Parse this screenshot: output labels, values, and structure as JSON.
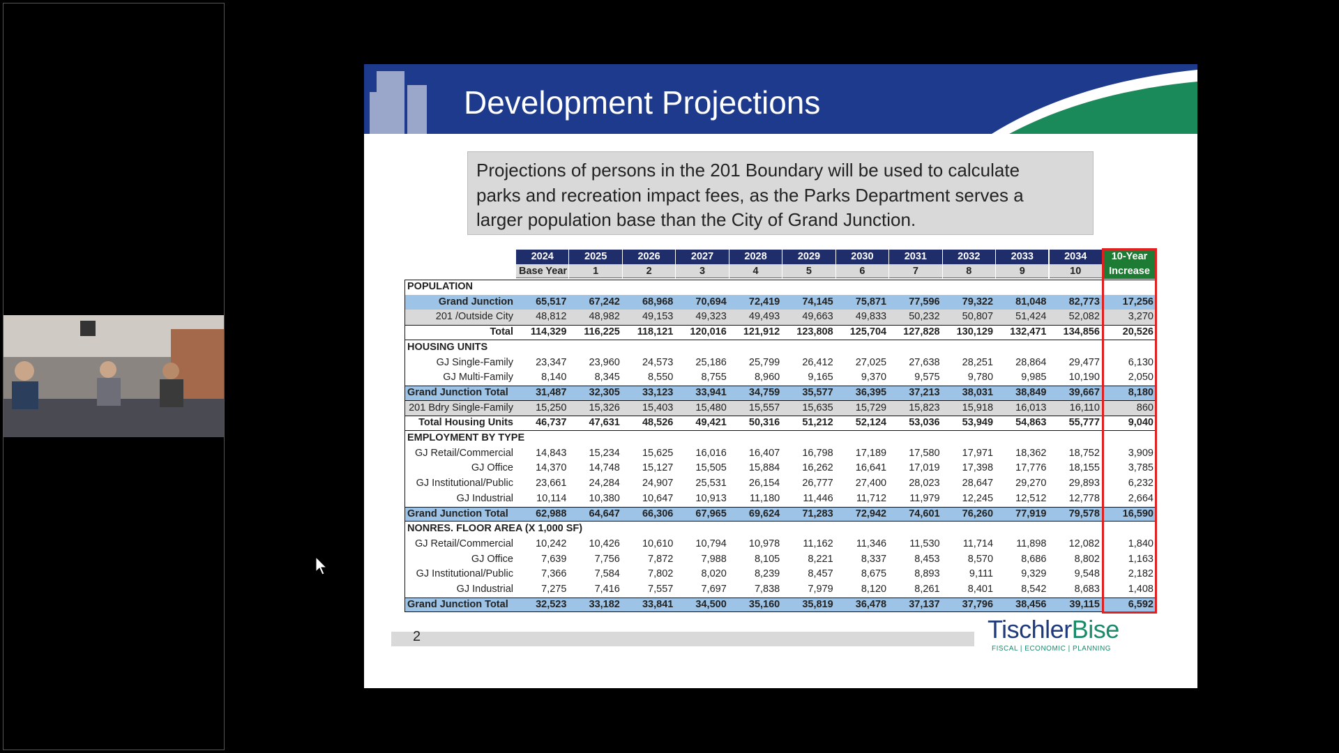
{
  "slide": {
    "title": "Development Projections",
    "intro_lines": [
      "Projections of persons in the 201 Boundary will be used to calculate",
      "parks and recreation impact fees, as the Parks Department serves a",
      "larger population base than the City of Grand Junction."
    ],
    "page_number": "2",
    "logo": {
      "part1": "Tischler",
      "part2": "Bise",
      "tagline": "FISCAL | ECONOMIC | PLANNING"
    }
  },
  "table": {
    "years": [
      "2024",
      "2025",
      "2026",
      "2027",
      "2028",
      "2029",
      "2030",
      "2031",
      "2032",
      "2033",
      "2034"
    ],
    "subheaders": [
      "Base Year",
      "1",
      "2",
      "3",
      "4",
      "5",
      "6",
      "7",
      "8",
      "9",
      "10"
    ],
    "increase_header": [
      "10-Year",
      "Increase"
    ],
    "rows": [
      {
        "label": "POPULATION"
      },
      {
        "label": "Grand Junction",
        "fill": "#9dc3e6",
        "bold": true,
        "values": [
          "65,517",
          "67,242",
          "68,968",
          "70,694",
          "72,419",
          "74,145",
          "75,871",
          "77,596",
          "79,322",
          "81,048",
          "82,773"
        ],
        "increase": "17,256"
      },
      {
        "label": "201 /Outside City",
        "fill": "#d9d9d9",
        "values": [
          "48,812",
          "48,982",
          "49,153",
          "49,323",
          "49,493",
          "49,663",
          "49,833",
          "50,232",
          "50,807",
          "51,424",
          "52,082"
        ],
        "increase": "3,270"
      },
      {
        "label": "Total",
        "bold": true,
        "rule": true,
        "values": [
          "114,329",
          "116,225",
          "118,121",
          "120,016",
          "121,912",
          "123,808",
          "125,704",
          "127,828",
          "130,129",
          "132,471",
          "134,856"
        ],
        "increase": "20,526"
      },
      {
        "label": "HOUSING UNITS"
      },
      {
        "label": "GJ Single-Family",
        "values": [
          "23,347",
          "23,960",
          "24,573",
          "25,186",
          "25,799",
          "26,412",
          "27,025",
          "27,638",
          "28,251",
          "28,864",
          "29,477"
        ],
        "increase": "6,130"
      },
      {
        "label": "GJ Multi-Family",
        "values": [
          "8,140",
          "8,345",
          "8,550",
          "8,755",
          "8,960",
          "9,165",
          "9,370",
          "9,575",
          "9,780",
          "9,985",
          "10,190"
        ],
        "increase": "2,050"
      },
      {
        "label": "Grand Junction Total",
        "fill": "#9dc3e6",
        "bold": true,
        "rule": true,
        "align": "left",
        "values": [
          "31,487",
          "32,305",
          "33,123",
          "33,941",
          "34,759",
          "35,577",
          "36,395",
          "37,213",
          "38,031",
          "38,849",
          "39,667"
        ],
        "increase": "8,180"
      },
      {
        "label": "201 Bdry Single-Family",
        "fill": "#d9d9d9",
        "values": [
          "15,250",
          "15,326",
          "15,403",
          "15,480",
          "15,557",
          "15,635",
          "15,729",
          "15,823",
          "15,918",
          "16,013",
          "16,110"
        ],
        "increase": "860"
      },
      {
        "label": "Total Housing Units",
        "bold": true,
        "rule": true,
        "values": [
          "46,737",
          "47,631",
          "48,526",
          "49,421",
          "50,316",
          "51,212",
          "52,124",
          "53,036",
          "53,949",
          "54,863",
          "55,777"
        ],
        "increase": "9,040"
      },
      {
        "label": "EMPLOYMENT BY TYPE"
      },
      {
        "label": "GJ Retail/Commercial",
        "values": [
          "14,843",
          "15,234",
          "15,625",
          "16,016",
          "16,407",
          "16,798",
          "17,189",
          "17,580",
          "17,971",
          "18,362",
          "18,752"
        ],
        "increase": "3,909"
      },
      {
        "label": "GJ Office",
        "values": [
          "14,370",
          "14,748",
          "15,127",
          "15,505",
          "15,884",
          "16,262",
          "16,641",
          "17,019",
          "17,398",
          "17,776",
          "18,155"
        ],
        "increase": "3,785"
      },
      {
        "label": "GJ Institutional/Public",
        "values": [
          "23,661",
          "24,284",
          "24,907",
          "25,531",
          "26,154",
          "26,777",
          "27,400",
          "28,023",
          "28,647",
          "29,270",
          "29,893"
        ],
        "increase": "6,232"
      },
      {
        "label": "GJ Industrial",
        "values": [
          "10,114",
          "10,380",
          "10,647",
          "10,913",
          "11,180",
          "11,446",
          "11,712",
          "11,979",
          "12,245",
          "12,512",
          "12,778"
        ],
        "increase": "2,664"
      },
      {
        "label": "Grand Junction Total",
        "fill": "#9dc3e6",
        "bold": true,
        "rule": true,
        "align": "left",
        "values": [
          "62,988",
          "64,647",
          "66,306",
          "67,965",
          "69,624",
          "71,283",
          "72,942",
          "74,601",
          "76,260",
          "77,919",
          "79,578"
        ],
        "increase": "16,590"
      },
      {
        "label": "NONRES. FLOOR AREA (X 1,000 SF)"
      },
      {
        "label": "GJ Retail/Commercial",
        "values": [
          "10,242",
          "10,426",
          "10,610",
          "10,794",
          "10,978",
          "11,162",
          "11,346",
          "11,530",
          "11,714",
          "11,898",
          "12,082"
        ],
        "increase": "1,840"
      },
      {
        "label": "GJ Office",
        "values": [
          "7,639",
          "7,756",
          "7,872",
          "7,988",
          "8,105",
          "8,221",
          "8,337",
          "8,453",
          "8,570",
          "8,686",
          "8,802"
        ],
        "increase": "1,163"
      },
      {
        "label": "GJ Institutional/Public",
        "values": [
          "7,366",
          "7,584",
          "7,802",
          "8,020",
          "8,239",
          "8,457",
          "8,675",
          "8,893",
          "9,111",
          "9,329",
          "9,548"
        ],
        "increase": "2,182"
      },
      {
        "label": "GJ Industrial",
        "values": [
          "7,275",
          "7,416",
          "7,557",
          "7,697",
          "7,838",
          "7,979",
          "8,120",
          "8,261",
          "8,401",
          "8,542",
          "8,683"
        ],
        "increase": "1,408"
      },
      {
        "label": "Grand Junction Total",
        "fill": "#9dc3e6",
        "bold": true,
        "rule": true,
        "align": "left",
        "values": [
          "32,523",
          "33,182",
          "33,841",
          "34,500",
          "35,160",
          "35,819",
          "36,478",
          "37,137",
          "37,796",
          "38,456",
          "39,115"
        ],
        "increase": "6,592"
      }
    ]
  }
}
